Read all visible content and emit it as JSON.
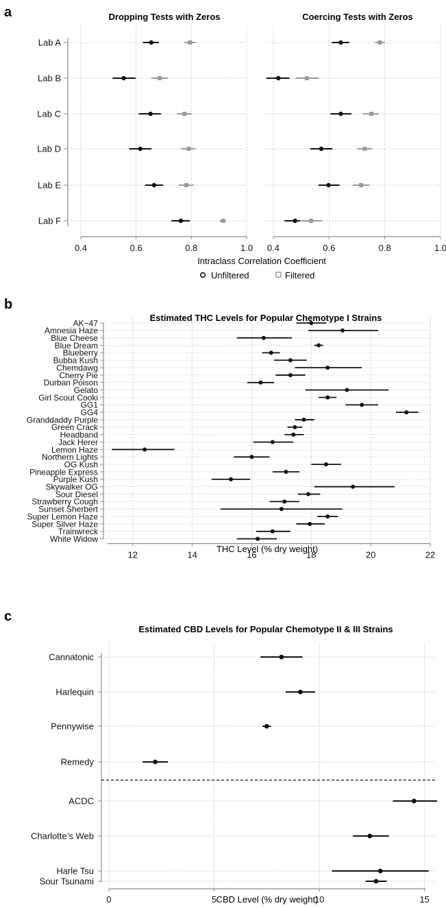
{
  "colors": {
    "unfiltered": "#111111",
    "filtered": "#9a9a9a",
    "grid": "#bdbdbd",
    "axis": "#8a8a8a"
  },
  "chart_data": [
    {
      "panel": "a",
      "type": "scatter",
      "subtype": "dot-with-error-bars",
      "facets": [
        {
          "title": "Dropping Tests with Zeros",
          "xlim": [
            0.4,
            1.0
          ],
          "series": [
            {
              "name": "Unfiltered",
              "marker": "circle",
              "estimate": [
                0.655,
                0.555,
                0.652,
                0.615,
                0.665,
                0.762
              ],
              "lower": [
                0.625,
                0.515,
                0.61,
                0.575,
                0.632,
                0.728
              ],
              "upper": [
                0.682,
                0.598,
                0.69,
                0.655,
                0.698,
                0.795
              ]
            },
            {
              "name": "Filtered",
              "marker": "square",
              "estimate": [
                0.795,
                0.685,
                0.775,
                0.79,
                0.782,
                0.915
              ],
              "lower": [
                0.775,
                0.655,
                0.748,
                0.762,
                0.755,
                0.902
              ],
              "upper": [
                0.815,
                0.715,
                0.8,
                0.815,
                0.808,
                0.925
              ]
            }
          ]
        },
        {
          "title": "Coercing Tests with Zeros",
          "xlim": [
            0.4,
            1.0
          ],
          "series": [
            {
              "name": "Unfiltered",
              "marker": "circle",
              "estimate": [
                0.642,
                0.418,
                0.642,
                0.572,
                0.598,
                0.478
              ],
              "lower": [
                0.61,
                0.375,
                0.605,
                0.532,
                0.562,
                0.44
              ],
              "upper": [
                0.672,
                0.458,
                0.68,
                0.612,
                0.638,
                0.52
              ]
            },
            {
              "name": "Filtered",
              "marker": "square",
              "estimate": [
                0.782,
                0.52,
                0.752,
                0.728,
                0.715,
                0.535
              ],
              "lower": [
                0.765,
                0.48,
                0.722,
                0.7,
                0.685,
                0.495
              ],
              "upper": [
                0.8,
                0.562,
                0.778,
                0.755,
                0.745,
                0.575
              ]
            }
          ]
        }
      ],
      "categories": [
        "Lab A",
        "Lab B",
        "Lab C",
        "Lab D",
        "Lab E",
        "Lab F"
      ],
      "xticks": [
        "0.4",
        "0.6",
        "0.8",
        "1.0"
      ],
      "xlabel": "Intraclass Correlation Coefficient",
      "legend": {
        "position": "bottom",
        "items": [
          "Unfiltered",
          "Filtered"
        ]
      },
      "grid": true
    },
    {
      "panel": "b",
      "type": "scatter",
      "subtype": "dot-with-error-bars",
      "title": "Estimated THC Levels for Popular Chemotype I Strains",
      "xlabel": "THC Level (% dry weight)",
      "xlim": [
        11.2,
        22
      ],
      "xticks": [
        "12",
        "14",
        "16",
        "18",
        "20",
        "22"
      ],
      "categories": [
        "AK−47",
        "Amnesia Haze",
        "Blue Cheese",
        "Blue Dream",
        "Blueberry",
        "Bubba Kush",
        "Chemdawg",
        "Cherry Pie",
        "Durban Poison",
        "Gelato",
        "Girl Scout Cooki",
        "GG1",
        "GG4",
        "Granddaddy Purple",
        "Green Crack",
        "Headband",
        "Jack Herer",
        "Lemon Haze",
        "Northern Lights",
        "OG Kush",
        "Pineapple Express",
        "Purple Kush",
        "Skywalker OG",
        "Sour Diesel",
        "Strawberry Cough",
        "Sunset Sherbert",
        "Super Lemon Haze",
        "Super Silver Haze",
        "Trainwreck",
        "White Widow"
      ],
      "estimate": [
        18.0,
        19.05,
        16.4,
        18.25,
        16.65,
        17.3,
        18.55,
        17.3,
        16.3,
        19.2,
        18.55,
        19.7,
        21.2,
        17.75,
        17.45,
        17.4,
        16.7,
        12.4,
        16.0,
        18.5,
        17.15,
        15.3,
        19.4,
        17.9,
        17.1,
        17.0,
        18.55,
        17.95,
        16.7,
        16.2
      ],
      "lower": [
        17.5,
        17.9,
        15.5,
        18.1,
        16.35,
        16.75,
        17.45,
        16.8,
        15.85,
        17.8,
        18.25,
        19.15,
        20.85,
        17.45,
        17.2,
        17.1,
        16.05,
        11.3,
        15.4,
        18.0,
        16.7,
        14.65,
        18.1,
        17.55,
        16.6,
        14.95,
        18.2,
        17.5,
        16.15,
        15.5
      ],
      "upper": [
        18.5,
        20.25,
        17.35,
        18.4,
        16.95,
        17.85,
        19.7,
        17.8,
        16.75,
        20.6,
        18.85,
        20.25,
        21.6,
        18.1,
        17.7,
        17.75,
        17.4,
        13.4,
        16.6,
        19.0,
        17.6,
        15.95,
        20.8,
        18.3,
        17.6,
        19.05,
        18.9,
        18.45,
        17.3,
        16.85
      ],
      "grid": true
    },
    {
      "panel": "c",
      "type": "scatter",
      "subtype": "dot-with-error-bars",
      "title": "Estimated CBD Levels for Popular Chemotype II & III Strains",
      "xlabel": "CBD Level (% dry weight)",
      "xlim": [
        0,
        15.5
      ],
      "xticks": [
        "0",
        "5",
        "10",
        "15"
      ],
      "categories": [
        "Cannatonic",
        "Harlequin",
        "Pennywise",
        "Remedy",
        "ACDC",
        "Charlotte’s Web",
        "Harle Tsu",
        "Sour Tsunami"
      ],
      "estimate": [
        8.2,
        9.1,
        7.5,
        2.2,
        14.5,
        12.4,
        12.9,
        12.7
      ],
      "lower": [
        7.2,
        8.4,
        7.3,
        1.6,
        13.5,
        11.6,
        10.6,
        12.2
      ],
      "upper": [
        9.2,
        9.8,
        7.7,
        2.8,
        15.6,
        13.3,
        15.2,
        13.2
      ],
      "separator_after_index": 3,
      "grid": true
    }
  ],
  "panel_labels": [
    "a",
    "b",
    "c"
  ]
}
